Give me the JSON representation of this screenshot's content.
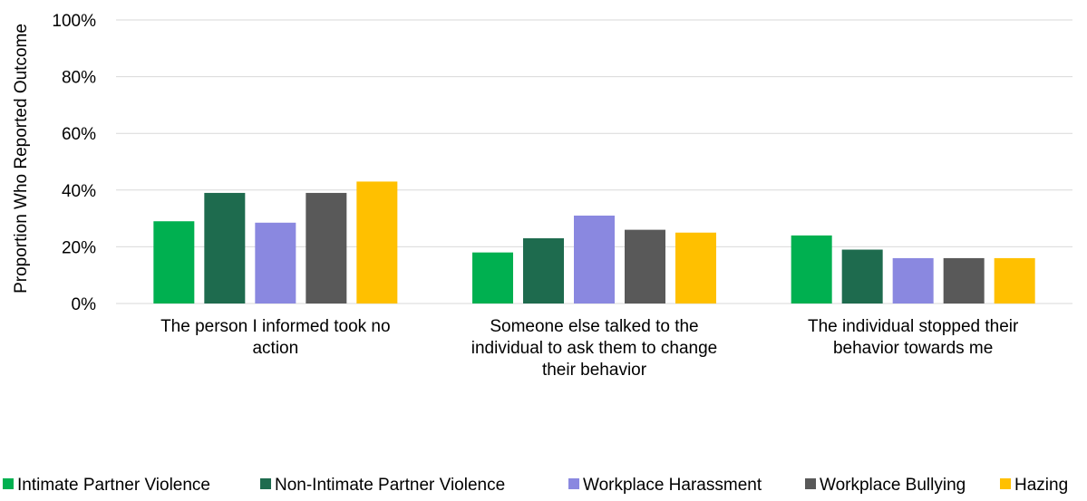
{
  "chart_data": {
    "type": "bar",
    "title": "",
    "xlabel": "",
    "ylabel": "Proportion Who Reported Outcome",
    "ylim": [
      0,
      100
    ],
    "yticks": [
      0,
      20,
      40,
      60,
      80,
      100
    ],
    "ytick_labels": [
      "0%",
      "20%",
      "40%",
      "60%",
      "80%",
      "100%"
    ],
    "grid": true,
    "legend_position": "bottom",
    "categories": [
      [
        "The person I informed took no",
        "action"
      ],
      [
        "Someone else talked to the",
        "individual to ask them to change",
        "their behavior"
      ],
      [
        "The individual stopped their",
        "behavior towards me"
      ]
    ],
    "series": [
      {
        "name": "Intimate Partner Violence",
        "color": "#00b050",
        "values": [
          29,
          18,
          24
        ]
      },
      {
        "name": "Non-Intimate Partner Violence",
        "color": "#1e6b4e",
        "values": [
          39,
          23,
          19
        ]
      },
      {
        "name": "Workplace Harassment",
        "color": "#8a88e0",
        "values": [
          28.5,
          31,
          16
        ]
      },
      {
        "name": "Workplace Bullying",
        "color": "#595959",
        "values": [
          39,
          26,
          16
        ]
      },
      {
        "name": "Hazing",
        "color": "#ffc000",
        "values": [
          43,
          25,
          16
        ]
      }
    ]
  }
}
